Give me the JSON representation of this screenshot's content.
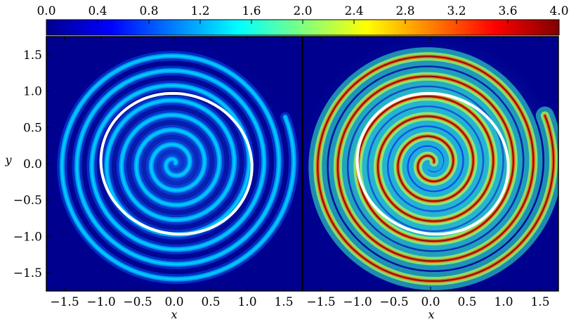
{
  "colorbar": {
    "colormap": "jet",
    "range": [
      0.0,
      4.0
    ],
    "ticks": [
      "0.0",
      "0.4",
      "0.8",
      "1.2",
      "1.6",
      "2.0",
      "2.4",
      "2.8",
      "3.2",
      "3.6",
      "4.0"
    ],
    "stops": [
      "#00008f",
      "#0000ff",
      "#0080ff",
      "#00ffff",
      "#80ff80",
      "#ffff00",
      "#ff8000",
      "#ff0000",
      "#800000"
    ]
  },
  "chart_data": [
    {
      "type": "heatmap",
      "panel": "left",
      "xlabel": "x",
      "ylabel": "y",
      "xlim": [
        -1.75,
        1.75
      ],
      "ylim": [
        -1.75,
        1.75
      ],
      "xticks": [
        "−1.5",
        "−1.0",
        "−0.5",
        "0.0",
        "0.5",
        "1.0",
        "1.5"
      ],
      "yticks": [
        "1.5",
        "1.0",
        "0.5",
        "0.0",
        "−0.5",
        "−1.0",
        "−1.5"
      ],
      "xtick_values": [
        -1.5,
        -1.0,
        -0.5,
        0.0,
        0.5,
        1.0,
        1.5
      ],
      "ytick_values": [
        1.5,
        1.0,
        0.5,
        0.0,
        -0.5,
        -1.0,
        -1.5
      ],
      "background_value": 0.2,
      "arm_value": 1.3,
      "spiral": {
        "arms": 1,
        "turns": 8,
        "r_min": 0.02,
        "r_max": 1.65,
        "description_value_range": [
          0.6,
          1.6
        ]
      },
      "overlay_curve": {
        "color": "#ffffff",
        "shape": "closed loop",
        "radius": 1.0
      }
    },
    {
      "type": "heatmap",
      "panel": "right",
      "xlabel": "x",
      "ylabel": "",
      "xlim": [
        -1.75,
        1.75
      ],
      "ylim": [
        -1.75,
        1.75
      ],
      "xticks": [
        "−1.5",
        "−1.0",
        "−0.5",
        "0.0",
        "0.5",
        "1.0",
        "1.5"
      ],
      "xtick_values": [
        -1.5,
        -1.0,
        -0.5,
        0.0,
        0.5,
        1.0,
        1.5
      ],
      "background_value": 0.6,
      "arm_value": 2.6,
      "peak_value": 4.0,
      "spiral": {
        "arms": 1,
        "turns": 6,
        "r_min": 0.05,
        "r_max": 1.7
      },
      "overlay_curve": {
        "color": "#ffffff",
        "shape": "closed loop",
        "radius": 1.0
      }
    }
  ]
}
